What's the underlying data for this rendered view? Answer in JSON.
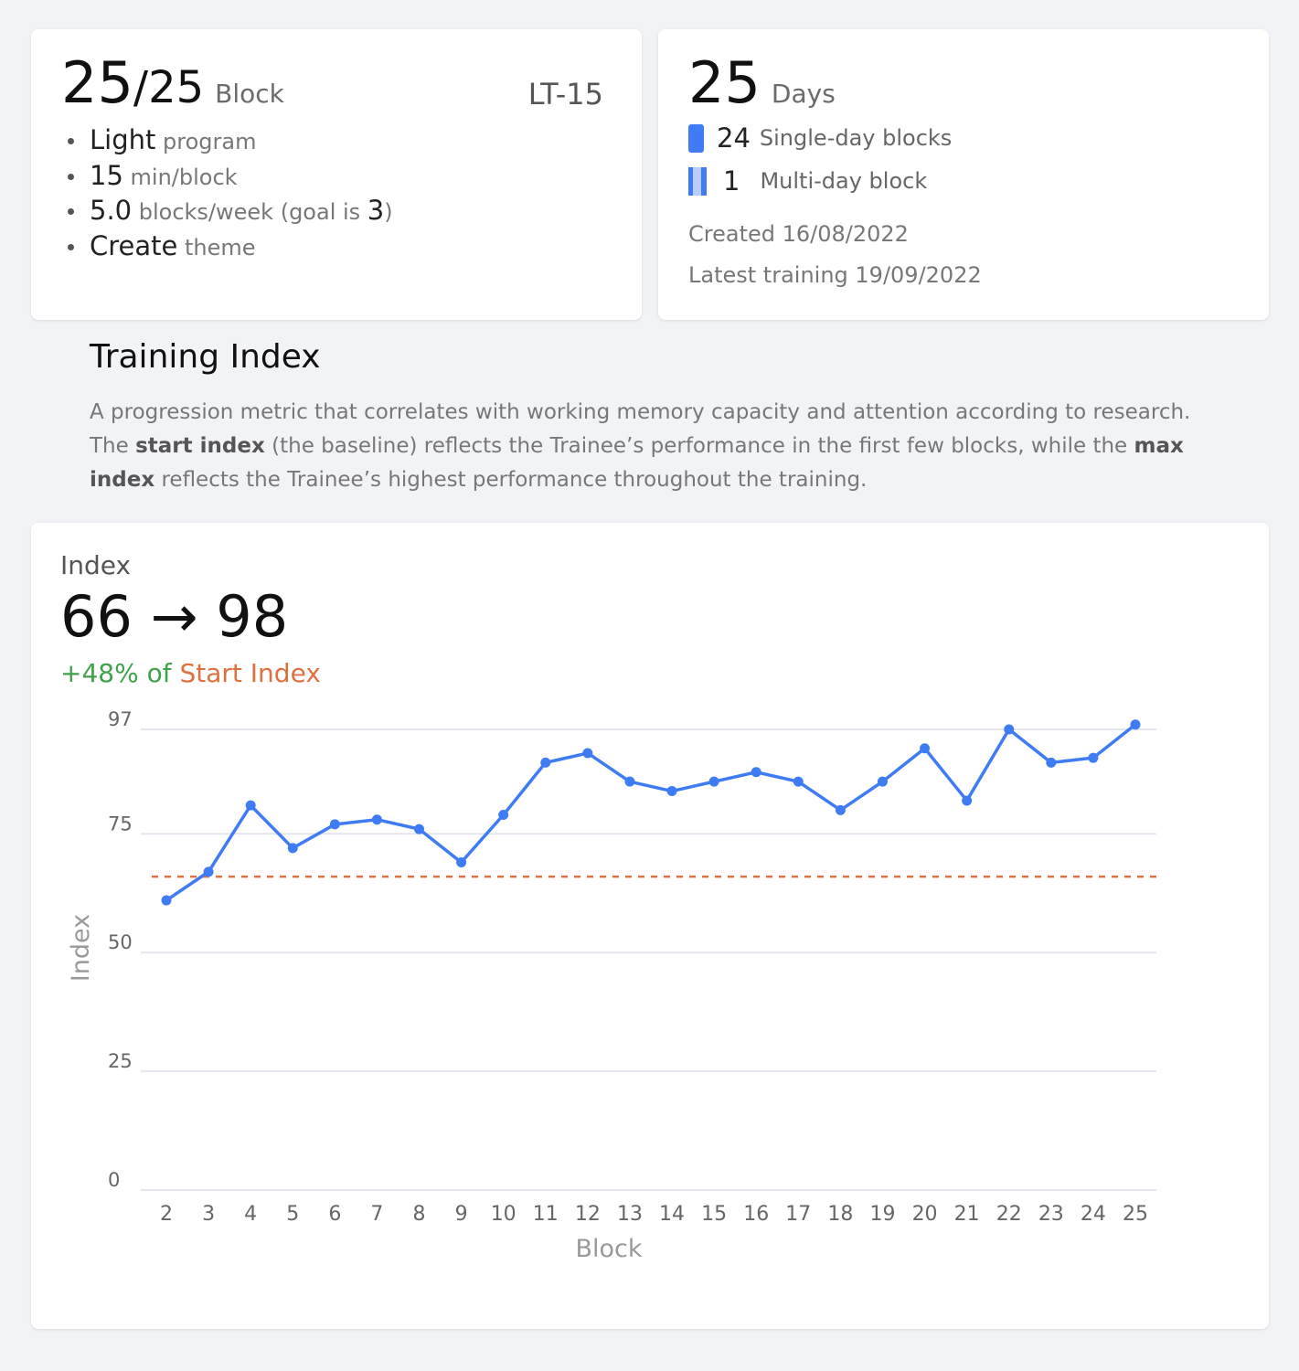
{
  "summary": {
    "block_current": "25",
    "block_total": "/25",
    "block_unit": "Block",
    "code": "LT-15",
    "items": [
      {
        "strong": "Light",
        "text": " program"
      },
      {
        "strong": "15",
        "text": " min/block"
      },
      {
        "strong": "5.0",
        "text": " blocks/week (goal is ",
        "strong2": "3",
        "tail": ")"
      },
      {
        "strong": "Create",
        "text": " theme"
      }
    ]
  },
  "days": {
    "count": "25",
    "unit": "Days",
    "single_count": "24",
    "single_label": "Single-day blocks",
    "multi_count": "1",
    "multi_label": "Multi-day block",
    "created": "Created 16/08/2022",
    "latest": "Latest training 19/09/2022",
    "colors": {
      "solid": "#3f7cf3",
      "stripe": "#b8cdfa"
    }
  },
  "section": {
    "title": "Training Index",
    "desc_1": "A progression metric that correlates with working memory capacity and attention according to research. The ",
    "desc_b1": "start index",
    "desc_2": " (the baseline) reflects the Trainee’s performance in the first few blocks, while the ",
    "desc_b2": "max index",
    "desc_3": " reflects the Trainee’s highest performance throughout the training."
  },
  "index_card": {
    "label": "Index",
    "value": "66 → 98",
    "improvement": "+48% of",
    "improvement_ref": "Start Index",
    "colors": {
      "positive": "#3fa14a",
      "reference": "#e07040"
    }
  },
  "chart_data": {
    "type": "line",
    "x": [
      2,
      3,
      4,
      5,
      6,
      7,
      8,
      9,
      10,
      11,
      12,
      13,
      14,
      15,
      16,
      17,
      18,
      19,
      20,
      21,
      22,
      23,
      24,
      25
    ],
    "series": [
      {
        "values": [
          61,
          67,
          81,
          72,
          77,
          78,
          76,
          69,
          79,
          90,
          92,
          86,
          84,
          86,
          88,
          86,
          80,
          86,
          93,
          82,
          97,
          90,
          91,
          98
        ]
      }
    ],
    "reference_line": 66,
    "xlabel": "Block",
    "ylabel": "Index",
    "yticks": [
      0,
      25,
      50,
      75,
      97
    ],
    "ylim": [
      0,
      97
    ],
    "grid": true,
    "colors": {
      "line": "#3f7cf3",
      "reference": "#e07040",
      "grid": "#e3e6ee"
    }
  }
}
